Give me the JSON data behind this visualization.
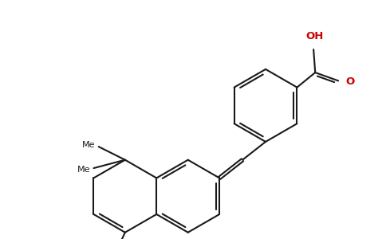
{
  "bg": "#ffffff",
  "lc": "#1a1a1a",
  "rc": "#cc0000",
  "lw": 1.5,
  "dbo": 0.018,
  "figsize": [
    4.84,
    3.0
  ],
  "dpi": 100,
  "xlim": [
    0.0,
    4.84
  ],
  "ylim": [
    0.0,
    3.0
  ]
}
